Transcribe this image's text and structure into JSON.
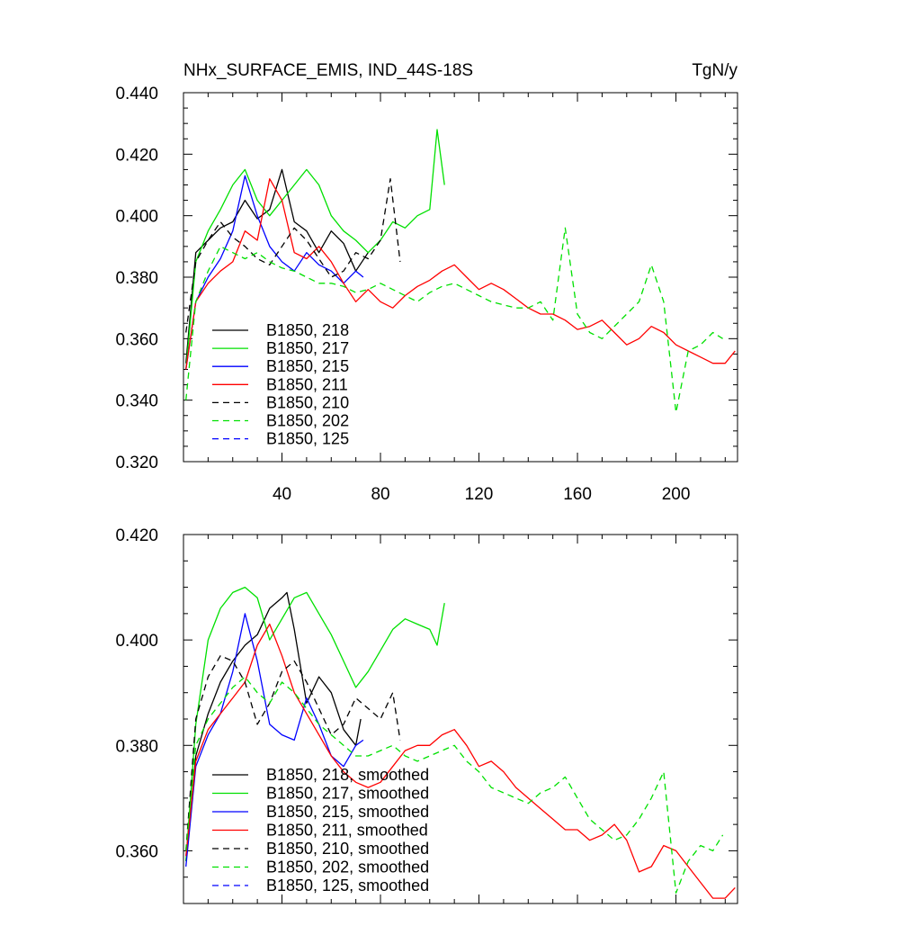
{
  "chart_data": [
    {
      "type": "line",
      "title": "NHx_SURFACE_EMIS, IND_44S-18S",
      "units": "TgN/y",
      "xlim": [
        0,
        225
      ],
      "ylim": [
        0.32,
        0.44
      ],
      "xticks": [
        40,
        80,
        120,
        160,
        200
      ],
      "xtick_labels": [
        "40",
        "80",
        "120",
        "160",
        "200"
      ],
      "yticks": [
        0.32,
        0.34,
        0.36,
        0.38,
        0.4,
        0.42,
        0.44
      ],
      "ytick_labels": [
        "0.320",
        "0.340",
        "0.360",
        "0.380",
        "0.400",
        "0.420",
        "0.440"
      ],
      "grid": false,
      "legend_position": "lower-left",
      "series": [
        {
          "name": "B1850, 218",
          "color": "#000000",
          "dash": "solid",
          "x": [
            1,
            5,
            10,
            15,
            20,
            25,
            30,
            35,
            40,
            45,
            50,
            55,
            60,
            65,
            70,
            75
          ],
          "y": [
            0.352,
            0.388,
            0.392,
            0.396,
            0.398,
            0.405,
            0.399,
            0.402,
            0.415,
            0.398,
            0.395,
            0.388,
            0.395,
            0.391,
            0.382,
            0.388
          ]
        },
        {
          "name": "B1850, 217",
          "color": "#00e000",
          "dash": "solid",
          "x": [
            1,
            5,
            10,
            15,
            20,
            25,
            30,
            35,
            40,
            45,
            50,
            55,
            60,
            65,
            70,
            75,
            80,
            85,
            90,
            95,
            100,
            103,
            106
          ],
          "y": [
            0.35,
            0.385,
            0.395,
            0.402,
            0.41,
            0.415,
            0.405,
            0.4,
            0.405,
            0.41,
            0.415,
            0.41,
            0.4,
            0.395,
            0.392,
            0.388,
            0.392,
            0.398,
            0.396,
            0.4,
            0.402,
            0.428,
            0.41
          ]
        },
        {
          "name": "B1850, 215",
          "color": "#0000ff",
          "dash": "solid",
          "x": [
            1,
            5,
            10,
            15,
            20,
            25,
            30,
            35,
            40,
            45,
            50,
            55,
            60,
            65,
            70,
            73
          ],
          "y": [
            0.35,
            0.372,
            0.38,
            0.386,
            0.395,
            0.413,
            0.4,
            0.39,
            0.385,
            0.382,
            0.388,
            0.384,
            0.382,
            0.378,
            0.382,
            0.38
          ]
        },
        {
          "name": "B1850, 211",
          "color": "#ff0000",
          "dash": "solid",
          "x": [
            1,
            5,
            10,
            15,
            20,
            25,
            30,
            35,
            40,
            45,
            50,
            55,
            60,
            65,
            70,
            75,
            80,
            85,
            90,
            95,
            100,
            105,
            110,
            115,
            120,
            125,
            130,
            135,
            140,
            145,
            150,
            155,
            160,
            165,
            170,
            175,
            180,
            185,
            190,
            195,
            200,
            205,
            210,
            215,
            220,
            224
          ],
          "y": [
            0.35,
            0.372,
            0.378,
            0.382,
            0.385,
            0.395,
            0.392,
            0.412,
            0.405,
            0.388,
            0.386,
            0.39,
            0.385,
            0.378,
            0.372,
            0.376,
            0.372,
            0.37,
            0.374,
            0.377,
            0.379,
            0.382,
            0.384,
            0.38,
            0.376,
            0.378,
            0.376,
            0.373,
            0.37,
            0.368,
            0.368,
            0.366,
            0.363,
            0.364,
            0.366,
            0.362,
            0.358,
            0.36,
            0.364,
            0.362,
            0.358,
            0.356,
            0.354,
            0.352,
            0.352,
            0.356
          ]
        },
        {
          "name": "B1850, 210",
          "color": "#000000",
          "dash": "dashed",
          "x": [
            1,
            5,
            10,
            15,
            20,
            25,
            30,
            35,
            40,
            45,
            50,
            55,
            60,
            65,
            70,
            75,
            80,
            84,
            88
          ],
          "y": [
            0.362,
            0.385,
            0.392,
            0.398,
            0.393,
            0.39,
            0.386,
            0.384,
            0.39,
            0.396,
            0.392,
            0.386,
            0.38,
            0.382,
            0.388,
            0.386,
            0.392,
            0.412,
            0.385
          ]
        },
        {
          "name": "B1850, 202",
          "color": "#00e000",
          "dash": "dashed",
          "x": [
            1,
            5,
            10,
            15,
            20,
            25,
            30,
            35,
            40,
            45,
            50,
            55,
            60,
            65,
            70,
            75,
            80,
            85,
            90,
            95,
            100,
            105,
            110,
            115,
            120,
            125,
            130,
            135,
            140,
            145,
            150,
            155,
            160,
            165,
            170,
            175,
            180,
            185,
            190,
            195,
            200,
            205,
            210,
            215,
            219
          ],
          "y": [
            0.34,
            0.372,
            0.382,
            0.39,
            0.388,
            0.386,
            0.388,
            0.385,
            0.383,
            0.382,
            0.38,
            0.378,
            0.378,
            0.377,
            0.375,
            0.376,
            0.378,
            0.376,
            0.374,
            0.372,
            0.375,
            0.377,
            0.378,
            0.376,
            0.374,
            0.372,
            0.371,
            0.37,
            0.37,
            0.372,
            0.366,
            0.396,
            0.368,
            0.362,
            0.36,
            0.364,
            0.368,
            0.372,
            0.384,
            0.372,
            0.336,
            0.356,
            0.358,
            0.362,
            0.36
          ]
        },
        {
          "name": "B1850, 125",
          "color": "#0000ff",
          "dash": "dashed",
          "x": [],
          "y": []
        }
      ]
    },
    {
      "type": "line",
      "xlim": [
        0,
        225
      ],
      "ylim": [
        0.35,
        0.42
      ],
      "xticks": [
        40,
        80,
        120,
        160,
        200
      ],
      "yticks": [
        0.36,
        0.38,
        0.4,
        0.42
      ],
      "ytick_labels": [
        "0.360",
        "0.380",
        "0.400",
        "0.420"
      ],
      "grid": false,
      "legend_position": "lower-left",
      "series": [
        {
          "name": "B1850, 218, smoothed",
          "color": "#000000",
          "dash": "solid",
          "x": [
            1,
            5,
            10,
            15,
            20,
            25,
            30,
            35,
            40,
            42,
            45,
            50,
            55,
            60,
            65,
            70,
            72
          ],
          "y": [
            0.358,
            0.378,
            0.386,
            0.392,
            0.396,
            0.399,
            0.401,
            0.406,
            0.408,
            0.409,
            0.402,
            0.388,
            0.393,
            0.39,
            0.383,
            0.38,
            0.385
          ]
        },
        {
          "name": "B1850, 217, smoothed",
          "color": "#00e000",
          "dash": "solid",
          "x": [
            1,
            5,
            10,
            15,
            20,
            25,
            30,
            35,
            40,
            45,
            50,
            55,
            60,
            65,
            70,
            75,
            80,
            85,
            90,
            95,
            100,
            103,
            106
          ],
          "y": [
            0.358,
            0.384,
            0.4,
            0.406,
            0.409,
            0.41,
            0.408,
            0.4,
            0.404,
            0.408,
            0.409,
            0.405,
            0.401,
            0.396,
            0.391,
            0.394,
            0.398,
            0.402,
            0.404,
            0.403,
            0.402,
            0.399,
            0.407
          ]
        },
        {
          "name": "B1850, 215, smoothed",
          "color": "#0000ff",
          "dash": "solid",
          "x": [
            1,
            5,
            10,
            15,
            20,
            25,
            30,
            35,
            40,
            45,
            50,
            55,
            60,
            65,
            70,
            73
          ],
          "y": [
            0.357,
            0.376,
            0.382,
            0.386,
            0.394,
            0.405,
            0.396,
            0.384,
            0.382,
            0.381,
            0.389,
            0.384,
            0.378,
            0.376,
            0.38,
            0.381
          ]
        },
        {
          "name": "B1850, 211, smoothed",
          "color": "#ff0000",
          "dash": "solid",
          "x": [
            1,
            5,
            10,
            15,
            20,
            25,
            30,
            35,
            40,
            45,
            50,
            55,
            60,
            65,
            70,
            75,
            80,
            85,
            90,
            95,
            100,
            105,
            110,
            115,
            120,
            125,
            130,
            135,
            140,
            145,
            150,
            155,
            160,
            165,
            170,
            175,
            180,
            185,
            190,
            195,
            200,
            205,
            210,
            215,
            220,
            224
          ],
          "y": [
            0.359,
            0.377,
            0.383,
            0.386,
            0.389,
            0.392,
            0.399,
            0.403,
            0.397,
            0.39,
            0.386,
            0.382,
            0.378,
            0.375,
            0.373,
            0.372,
            0.373,
            0.376,
            0.379,
            0.38,
            0.38,
            0.382,
            0.383,
            0.38,
            0.376,
            0.377,
            0.375,
            0.372,
            0.37,
            0.368,
            0.366,
            0.364,
            0.364,
            0.362,
            0.363,
            0.365,
            0.362,
            0.356,
            0.357,
            0.361,
            0.36,
            0.357,
            0.354,
            0.351,
            0.351,
            0.353
          ]
        },
        {
          "name": "B1850, 210, smoothed",
          "color": "#000000",
          "dash": "dashed",
          "x": [
            1,
            5,
            10,
            15,
            20,
            25,
            30,
            35,
            40,
            45,
            50,
            55,
            60,
            65,
            70,
            75,
            80,
            85,
            88
          ],
          "y": [
            0.36,
            0.385,
            0.393,
            0.397,
            0.396,
            0.392,
            0.384,
            0.388,
            0.394,
            0.396,
            0.392,
            0.387,
            0.382,
            0.384,
            0.389,
            0.387,
            0.385,
            0.39,
            0.381
          ]
        },
        {
          "name": "B1850, 202, smoothed",
          "color": "#00e000",
          "dash": "dashed",
          "x": [
            1,
            5,
            10,
            15,
            20,
            25,
            30,
            35,
            40,
            45,
            50,
            55,
            60,
            65,
            70,
            75,
            80,
            85,
            90,
            95,
            100,
            105,
            110,
            115,
            120,
            125,
            130,
            135,
            140,
            145,
            150,
            155,
            160,
            165,
            170,
            175,
            180,
            185,
            190,
            195,
            200,
            205,
            210,
            215,
            219
          ],
          "y": [
            0.36,
            0.38,
            0.385,
            0.388,
            0.391,
            0.393,
            0.39,
            0.388,
            0.392,
            0.39,
            0.387,
            0.384,
            0.382,
            0.38,
            0.378,
            0.378,
            0.379,
            0.38,
            0.378,
            0.377,
            0.378,
            0.379,
            0.38,
            0.377,
            0.375,
            0.372,
            0.371,
            0.37,
            0.369,
            0.371,
            0.372,
            0.374,
            0.37,
            0.366,
            0.364,
            0.362,
            0.363,
            0.366,
            0.37,
            0.375,
            0.352,
            0.358,
            0.361,
            0.36,
            0.363
          ]
        },
        {
          "name": "B1850, 125, smoothed",
          "color": "#0000ff",
          "dash": "dashed",
          "x": [],
          "y": []
        }
      ]
    }
  ]
}
